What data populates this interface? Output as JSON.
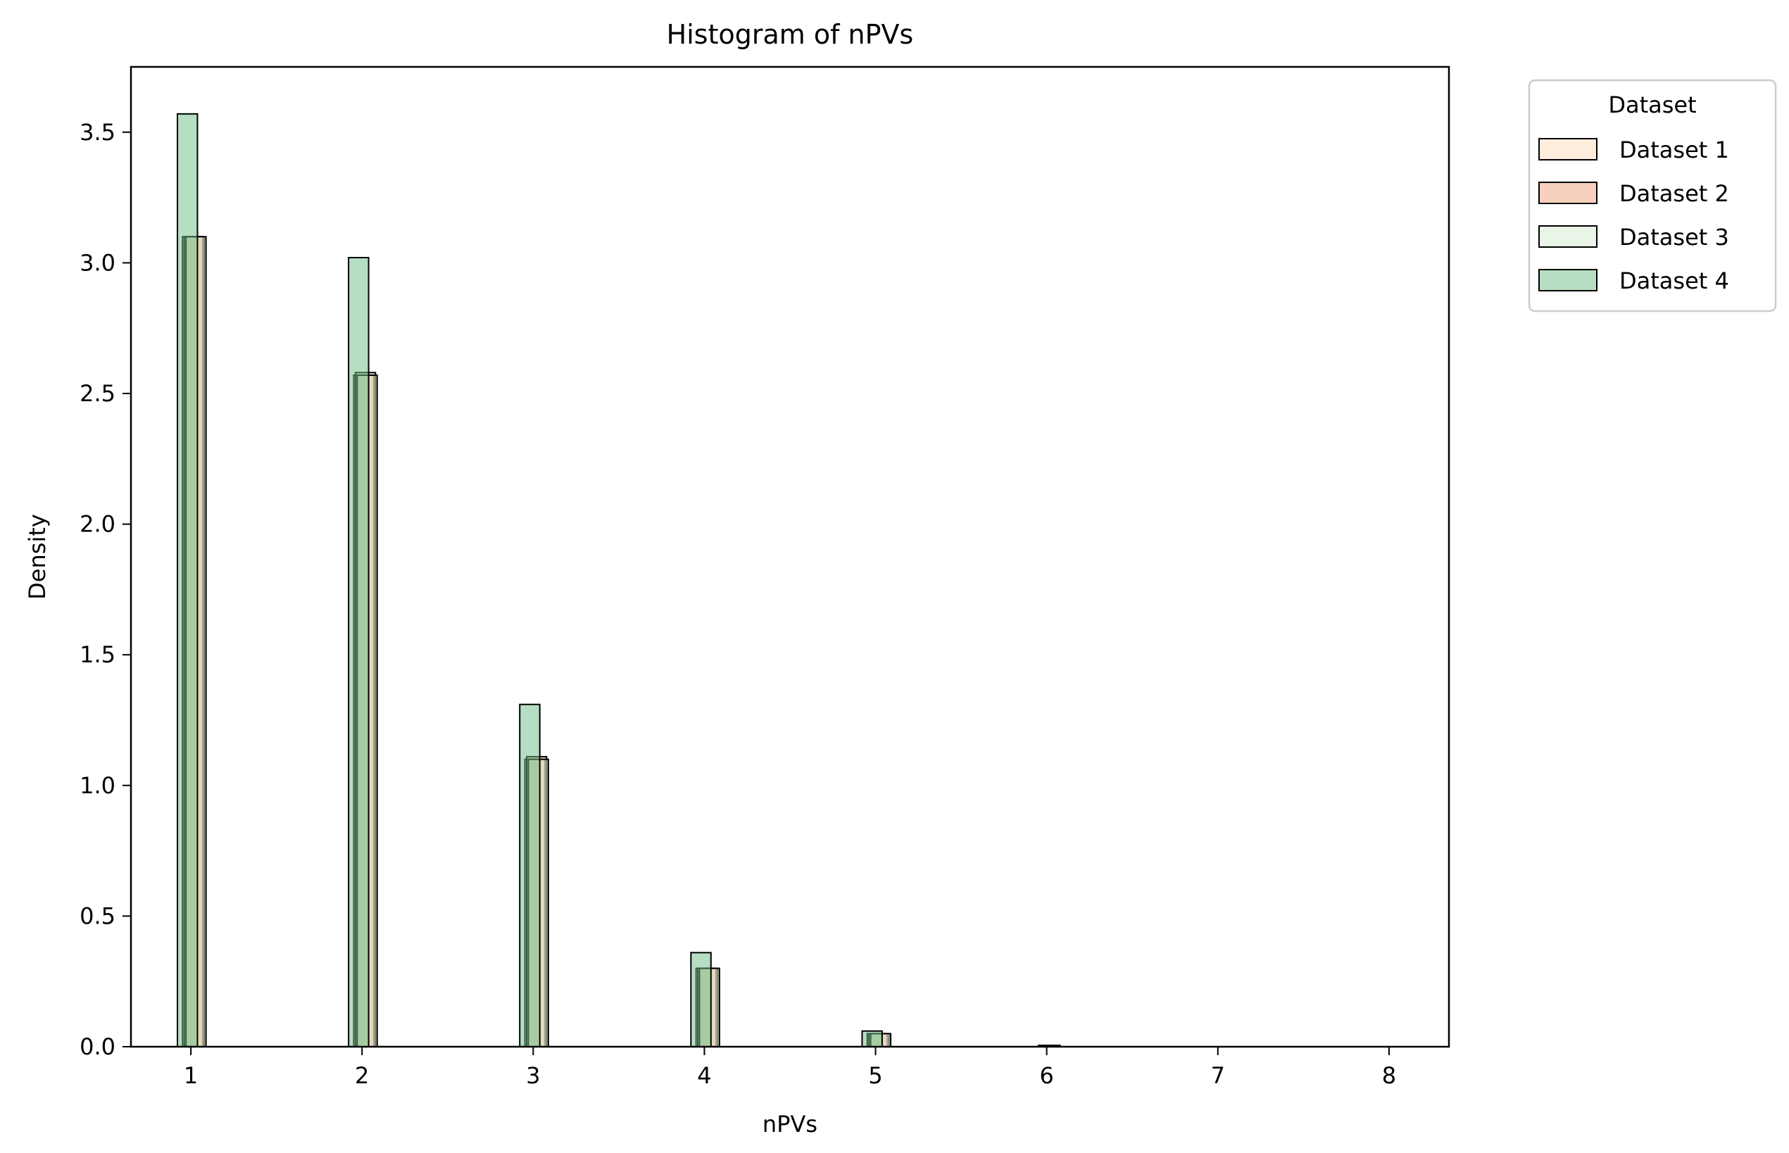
{
  "chart_data": {
    "type": "bar",
    "title": "Histogram of nPVs",
    "xlabel": "nPVs",
    "ylabel": "Density",
    "xlim": [
      0.65,
      8.35
    ],
    "ylim": [
      0,
      3.75
    ],
    "xticks": [
      "1",
      "2",
      "3",
      "4",
      "5",
      "6",
      "7",
      "8"
    ],
    "yticks": [
      "0.0",
      "0.5",
      "1.0",
      "1.5",
      "2.0",
      "2.5",
      "3.0",
      "3.5"
    ],
    "grid": false,
    "legend": {
      "title": "Dataset",
      "placement": "outside-top-right"
    },
    "bin_width": 0.117,
    "series": [
      {
        "name": "Dataset 1",
        "color": "#fdd9bc",
        "alpha": 0.5,
        "x": [
          1.01,
          2.01,
          3.01,
          4.01,
          5.01,
          6.01
        ],
        "values": [
          3.1,
          2.57,
          1.1,
          0.3,
          0.05,
          0.005
        ]
      },
      {
        "name": "Dataset 2",
        "color": "#f0a37c",
        "alpha": 0.5,
        "x": [
          1.02,
          2.02,
          3.02,
          4.02,
          5.02,
          6.02
        ],
        "values": [
          3.1,
          2.58,
          1.11,
          0.3,
          0.05,
          0.005
        ]
      },
      {
        "name": "Dataset 3",
        "color": "#d4ebcf",
        "alpha": 0.5,
        "x": [
          1.03,
          2.03,
          3.03,
          4.03,
          5.03
        ],
        "values": [
          3.1,
          2.57,
          1.1,
          0.3,
          0.05
        ]
      },
      {
        "name": "Dataset 4",
        "color": "#6bbd86",
        "alpha": 0.5,
        "x": [
          0.98,
          1.98,
          2.98,
          3.98,
          4.98
        ],
        "values": [
          3.57,
          3.02,
          1.31,
          0.36,
          0.06
        ]
      }
    ]
  }
}
